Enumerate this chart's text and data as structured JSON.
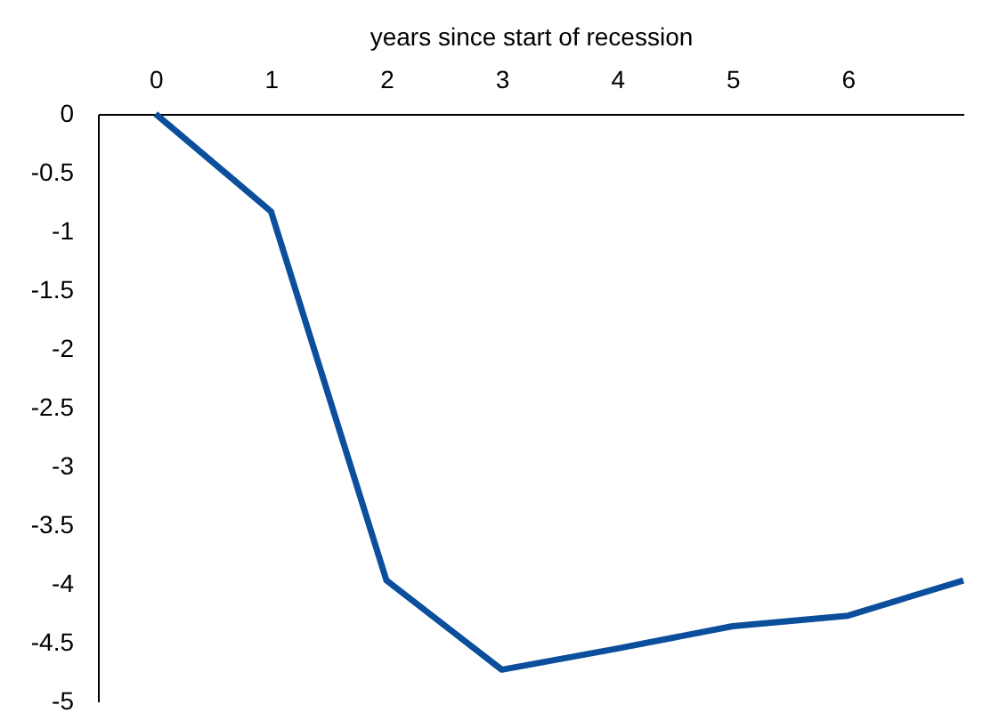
{
  "chart_data": {
    "type": "line",
    "xlabel": "years since start of recession",
    "x": [
      0,
      1,
      2,
      3,
      4,
      5,
      6,
      7
    ],
    "series": [
      {
        "color": "#0b4f9c",
        "values": [
          0,
          -0.83,
          -3.97,
          -4.73,
          -4.55,
          -4.36,
          -4.27,
          -3.97
        ]
      }
    ],
    "xlim": [
      -0.5,
      7
    ],
    "xticks": [
      0,
      1,
      2,
      3,
      4,
      5,
      6
    ],
    "ylim": [
      -5,
      0
    ],
    "yticks": [
      0,
      -0.5,
      -1,
      -1.5,
      -2,
      -2.5,
      -3,
      -3.5,
      -4,
      -4.5,
      -5
    ],
    "grid": false,
    "marker": "none",
    "line_style": "solid"
  }
}
